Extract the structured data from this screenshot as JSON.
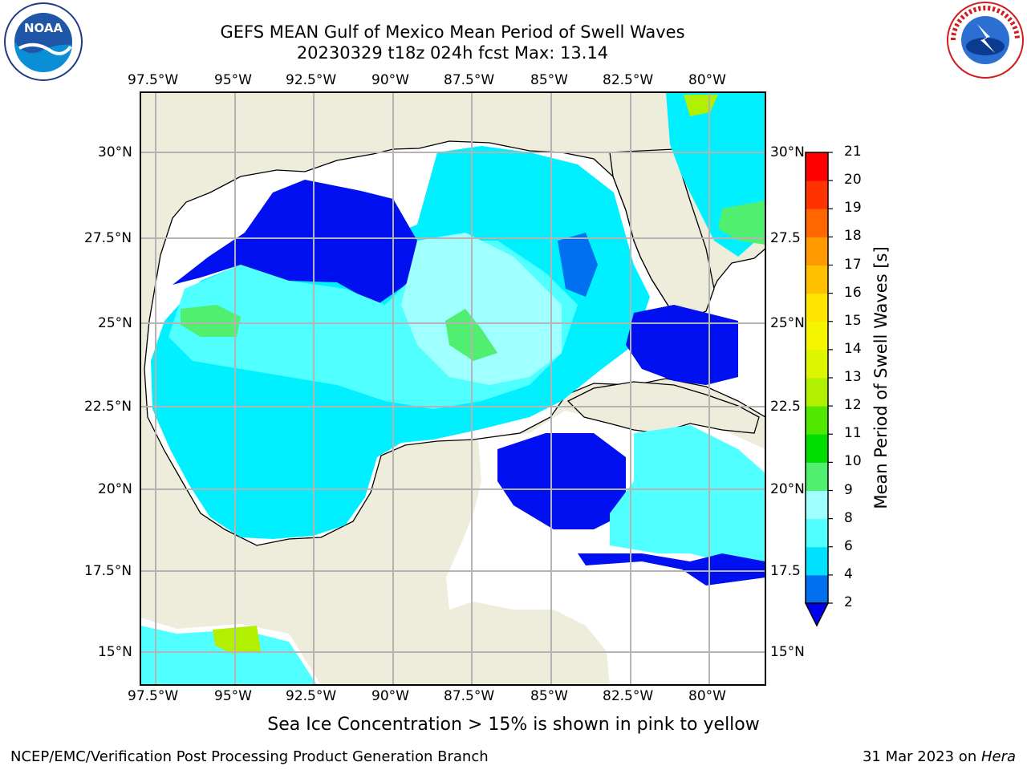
{
  "title": {
    "line1": "GEFS MEAN Gulf of Mexico Mean Period of Swell Waves",
    "line2": "20230329 t18z 024h fcst   Max: 13.14"
  },
  "map": {
    "lon_labels": [
      "97.5°W",
      "95°W",
      "92.5°W",
      "90°W",
      "87.5°W",
      "85°W",
      "82.5°W",
      "80°W"
    ],
    "lat_labels_left": [
      "30°N",
      "27.5°N",
      "25°N",
      "22.5°N",
      "20°N",
      "17.5°N",
      "15°N"
    ],
    "lat_labels_right": [
      "30°N",
      "27.5",
      "25°N",
      "22.5",
      "20°N",
      "17.5",
      "15°N"
    ],
    "colors": {
      "land": "#eeecdb",
      "ocean_white": "#ffffff",
      "grid": "#b4b4b4"
    }
  },
  "colorbar": {
    "label": "Mean Period of Swell Waves [s]",
    "ticks": [
      "2",
      "4",
      "6",
      "8",
      "9",
      "10",
      "11",
      "12",
      "13",
      "14",
      "15",
      "16",
      "17",
      "18",
      "19",
      "20",
      "21"
    ],
    "colors": [
      "#0000f0",
      "#0070f0",
      "#00e0ff",
      "#50ffff",
      "#a0ffff",
      "#50ef70",
      "#00dd00",
      "#50e800",
      "#b0f000",
      "#dcf500",
      "#f5f500",
      "#ffe600",
      "#ffc000",
      "#ff9900",
      "#ff6600",
      "#ff3300",
      "#ff0000"
    ]
  },
  "footer": {
    "ice_note": "Sea Ice Concentration > 15% is shown in pink to yellow",
    "credit": "NCEP/EMC/Verification Post Processing Product Generation Branch",
    "date": "31 Mar 2023 on ",
    "host": "Hera"
  },
  "logos": {
    "left": "NOAA",
    "right": "NATIONAL WEATHER SERVICE"
  }
}
